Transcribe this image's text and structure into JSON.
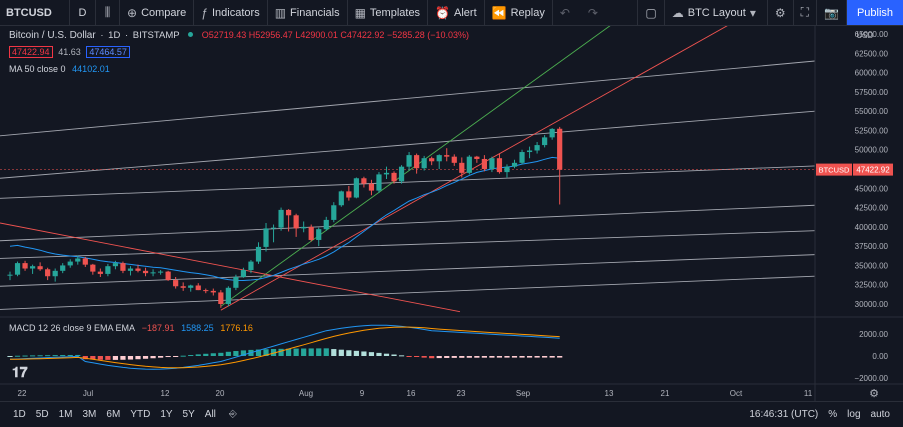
{
  "toolbar": {
    "symbol": "BTCUSD",
    "interval": "D",
    "compare": "Compare",
    "indicators": "Indicators",
    "financials": "Financials",
    "templates": "Templates",
    "alert": "Alert",
    "replay": "Replay",
    "layout_name": "BTC Layout",
    "publish": "Publish"
  },
  "legend": {
    "title": "Bitcoin / U.S. Dollar",
    "interval": "1D",
    "exchange": "BITSTAMP",
    "o": "O52719.43",
    "h": "H52956.47",
    "l": "L42900.01",
    "c": "C47422.92",
    "change": "−5285.28 (−10.03%)",
    "bid": "47422.94",
    "spread": "41.63",
    "ask": "47464.57",
    "ma_label": "MA 50 close 0",
    "ma_value": "44102.01"
  },
  "macd_legend": {
    "label": "MACD 12 26 close 9 EMA EMA",
    "hist": "−187.91",
    "macd": "1588.25",
    "signal": "1776.16"
  },
  "price_axis": {
    "currency": "USD",
    "ticks": [
      "65000.00",
      "62500.00",
      "60000.00",
      "57500.00",
      "55000.00",
      "52500.00",
      "50000.00",
      "47500.00",
      "45000.00",
      "42500.00",
      "40000.00",
      "37500.00",
      "35000.00",
      "32500.00",
      "30000.00"
    ],
    "last_label": "BTCUSD",
    "last_value": "47422.92",
    "macd_ticks": [
      "2000.00",
      "0.00",
      "−2000.00"
    ]
  },
  "time_axis": [
    "22",
    "Jul",
    "12",
    "20",
    "Aug",
    "9",
    "16",
    "23",
    "Sep",
    "13",
    "21",
    "Oct",
    "11"
  ],
  "bottom": {
    "ranges": [
      "1D",
      "5D",
      "1M",
      "3M",
      "6M",
      "YTD",
      "1Y",
      "5Y",
      "All"
    ],
    "clock": "16:46:31 (UTC)",
    "pct": "%",
    "log": "log",
    "auto": "auto"
  },
  "colors": {
    "up": "#26a69a",
    "down": "#ef5350",
    "ma": "#2196f3",
    "macd": "#2196f3",
    "signal": "#ff9800",
    "trendline": "#a3a6af",
    "green_line": "#4caf50",
    "red_line": "#ef5350"
  },
  "chart_data": {
    "type": "candlestick",
    "series": [
      {
        "name": "BTCUSD",
        "ohlc": [
          [
            33700,
            34200,
            33100,
            33800
          ],
          [
            33800,
            35500,
            33600,
            35300
          ],
          [
            35300,
            35600,
            34300,
            34600
          ],
          [
            34600,
            35100,
            33900,
            34900
          ],
          [
            34900,
            35400,
            34300,
            34500
          ],
          [
            34500,
            34700,
            33100,
            33600
          ],
          [
            33600,
            34600,
            32900,
            34300
          ],
          [
            34300,
            35300,
            34000,
            35000
          ],
          [
            35000,
            35800,
            34700,
            35500
          ],
          [
            35500,
            36300,
            35100,
            35900
          ],
          [
            35900,
            36100,
            34800,
            35100
          ],
          [
            35100,
            35200,
            33800,
            34200
          ],
          [
            34200,
            34600,
            33500,
            33900
          ],
          [
            33900,
            35200,
            33600,
            34900
          ],
          [
            34900,
            35600,
            34500,
            35300
          ],
          [
            35300,
            35500,
            34000,
            34300
          ],
          [
            34300,
            34900,
            33700,
            34600
          ],
          [
            34600,
            35100,
            34100,
            34300
          ],
          [
            34300,
            34700,
            33600,
            34000
          ],
          [
            34000,
            34500,
            33600,
            34100
          ],
          [
            34100,
            34400,
            33800,
            34200
          ],
          [
            34200,
            34300,
            33000,
            33100
          ],
          [
            33100,
            33500,
            32000,
            32300
          ],
          [
            32300,
            32800,
            31700,
            32100
          ],
          [
            32100,
            32500,
            31600,
            32400
          ],
          [
            32400,
            32700,
            31800,
            31800
          ],
          [
            31800,
            32000,
            31400,
            31700
          ],
          [
            31700,
            32000,
            31100,
            31500
          ],
          [
            31500,
            31800,
            29500,
            30000
          ],
          [
            30000,
            32300,
            29700,
            32100
          ],
          [
            32100,
            33800,
            31800,
            33500
          ],
          [
            33500,
            34700,
            33400,
            34400
          ],
          [
            34400,
            35700,
            34000,
            35500
          ],
          [
            35500,
            38000,
            35200,
            37400
          ],
          [
            37400,
            40500,
            36800,
            39800
          ],
          [
            39800,
            40300,
            38000,
            39900
          ],
          [
            39900,
            42500,
            39500,
            42200
          ],
          [
            42200,
            42300,
            39400,
            41500
          ],
          [
            41500,
            41700,
            38700,
            39800
          ],
          [
            39800,
            40700,
            39300,
            40000
          ],
          [
            40000,
            40300,
            38100,
            38300
          ],
          [
            38300,
            39900,
            37500,
            39700
          ],
          [
            39700,
            41300,
            39500,
            40900
          ],
          [
            40900,
            43200,
            40600,
            42800
          ],
          [
            42800,
            44700,
            42600,
            44600
          ],
          [
            44600,
            45300,
            43400,
            43800
          ],
          [
            43800,
            46400,
            43700,
            46300
          ],
          [
            46300,
            46500,
            45100,
            45600
          ],
          [
            45600,
            46100,
            44100,
            44700
          ],
          [
            44700,
            47100,
            44400,
            46800
          ],
          [
            46800,
            47800,
            46200,
            47000
          ],
          [
            47000,
            47200,
            45600,
            45900
          ],
          [
            45900,
            48000,
            45600,
            47800
          ],
          [
            47800,
            49700,
            47300,
            49300
          ],
          [
            49300,
            49500,
            46900,
            47600
          ],
          [
            47600,
            49200,
            47300,
            48900
          ],
          [
            48900,
            49100,
            48000,
            48500
          ],
          [
            48500,
            49400,
            47500,
            49300
          ],
          [
            49300,
            50200,
            48500,
            49100
          ],
          [
            49100,
            49400,
            47900,
            48300
          ],
          [
            48300,
            49000,
            46400,
            47000
          ],
          [
            47000,
            49300,
            46800,
            49100
          ],
          [
            49100,
            49200,
            48300,
            48800
          ],
          [
            48800,
            49300,
            47200,
            47500
          ],
          [
            47500,
            49100,
            47100,
            48900
          ],
          [
            48900,
            49500,
            46900,
            47100
          ],
          [
            47100,
            48100,
            46400,
            47800
          ],
          [
            47800,
            48700,
            47600,
            48300
          ],
          [
            48300,
            50000,
            48100,
            49700
          ],
          [
            49700,
            50400,
            48900,
            49900
          ],
          [
            49900,
            51000,
            49500,
            50600
          ],
          [
            50600,
            51900,
            50300,
            51600
          ],
          [
            51600,
            52800,
            51300,
            52700
          ],
          [
            52719.43,
            52956.47,
            42900.01,
            47422.92
          ]
        ]
      },
      {
        "name": "MA 50 close 0",
        "last": 44102.01
      }
    ],
    "ylim": [
      28000,
      66000
    ],
    "last": 47422.92
  }
}
